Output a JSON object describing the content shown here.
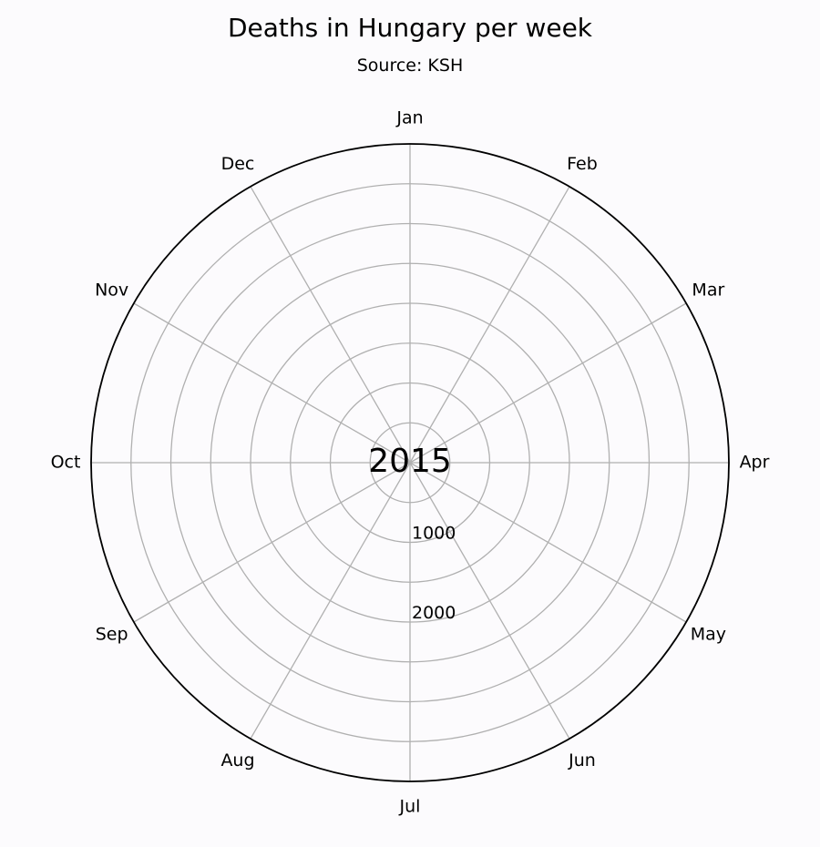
{
  "chart_data": {
    "type": "polar",
    "title": "Deaths in Hungary per week",
    "subtitle": "Source: KSH",
    "center_label": "2015",
    "theta_labels": [
      "Jan",
      "Feb",
      "Mar",
      "Apr",
      "May",
      "Jun",
      "Jul",
      "Aug",
      "Sep",
      "Oct",
      "Nov",
      "Dec"
    ],
    "direction": "clockwise",
    "zero_location": "top",
    "r_ticks": [
      1000,
      2000
    ],
    "r_gridlines": [
      500,
      1000,
      1500,
      2000,
      2500,
      3000,
      3500,
      4000
    ],
    "rlim": [
      0,
      4000
    ],
    "grid": true,
    "series": [],
    "colors": {
      "background": "#fcfbfd",
      "grid": "#b0b0b0",
      "outer_ring": "#000000",
      "text": "#000000"
    }
  }
}
